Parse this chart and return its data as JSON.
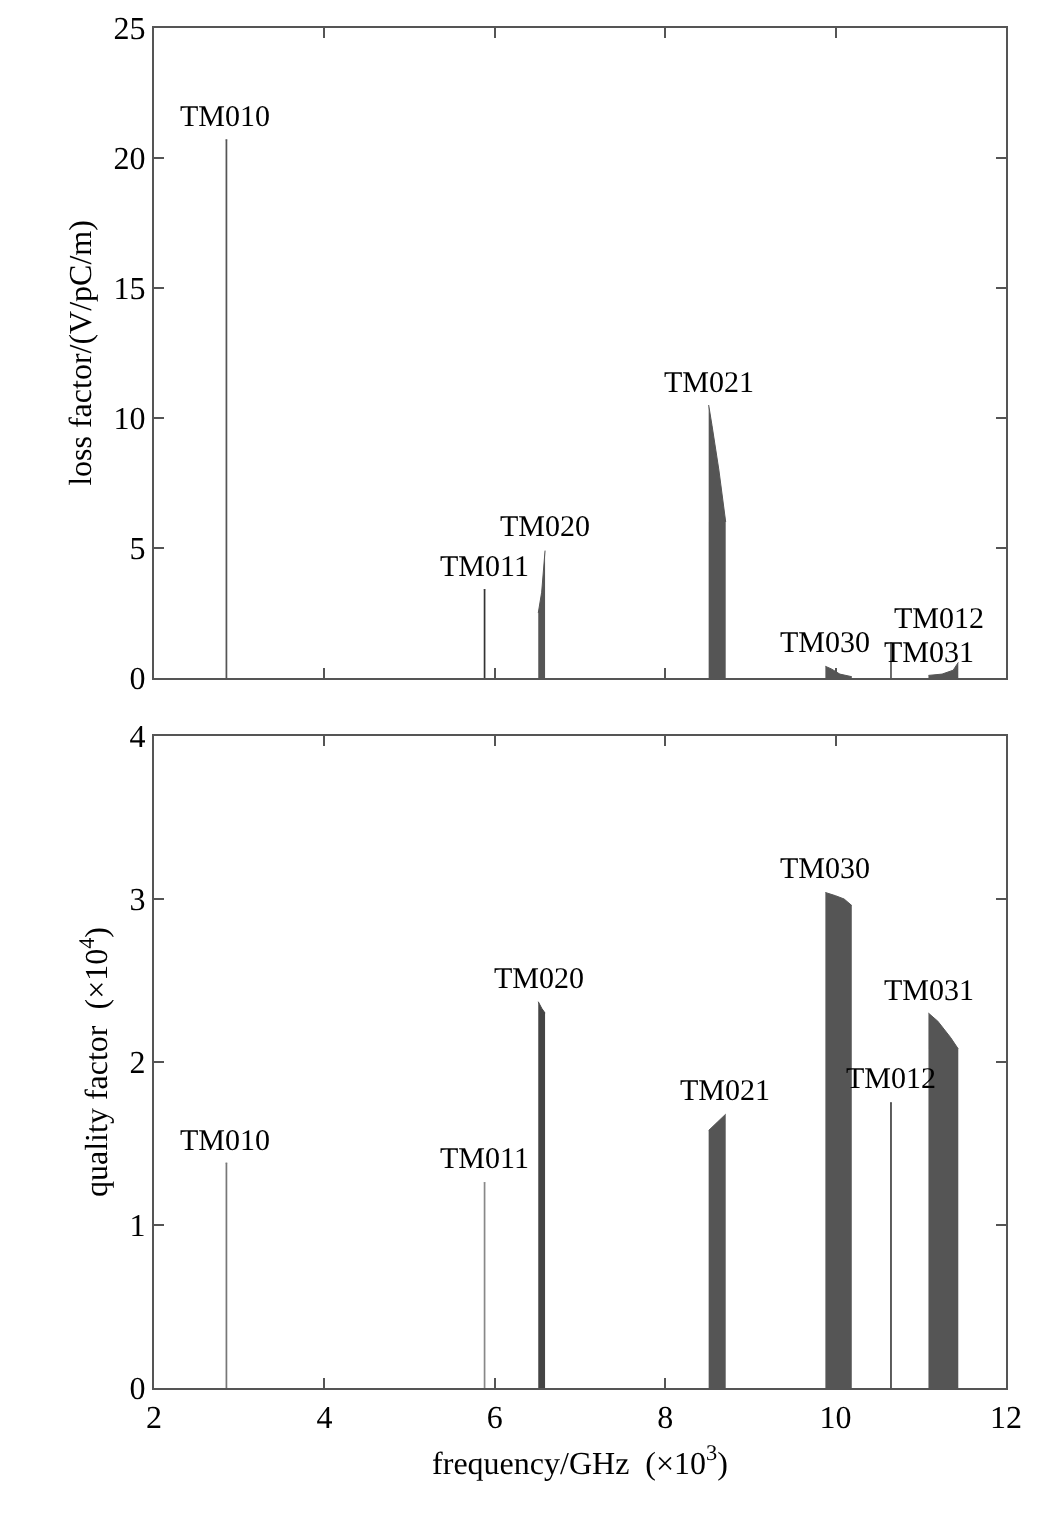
{
  "chart_data": [
    {
      "type": "area",
      "ylabel": "loss factor/(V/pC/m)",
      "xlim": [
        2,
        12
      ],
      "ylim": [
        0,
        25
      ],
      "xticks": [
        2,
        4,
        6,
        8,
        10,
        12
      ],
      "yticks": [
        0,
        5,
        10,
        15,
        20,
        25
      ],
      "tick_labels": "y",
      "series": [
        {
          "color": "#555555",
          "x": [
            2.84,
            2.86
          ],
          "values": [
            20.7,
            20.7
          ]
        },
        {
          "color": "#333333",
          "x": [
            5.87,
            5.89
          ],
          "values": [
            3.4,
            3.4
          ]
        },
        {
          "color": "#555555",
          "x": [
            6.51,
            6.55,
            6.59
          ],
          "values": [
            2.5,
            3.3,
            4.9
          ]
        },
        {
          "color": "#555555",
          "x": [
            8.51,
            8.55,
            8.63,
            8.71
          ],
          "values": [
            10.5,
            9.7,
            8.0,
            6.0
          ]
        },
        {
          "color": "#555555",
          "x": [
            9.88,
            9.95,
            10.05,
            10.19
          ],
          "values": [
            0.45,
            0.35,
            0.15,
            0.05
          ]
        },
        {
          "color": "#555555",
          "x": [
            10.64,
            10.66
          ],
          "values": [
            1.35,
            1.35
          ]
        },
        {
          "color": "#555555",
          "x": [
            11.09,
            11.25,
            11.38,
            11.44
          ],
          "values": [
            0.1,
            0.15,
            0.3,
            0.6
          ]
        }
      ],
      "annotations": [
        {
          "text": "TM010",
          "x": 2.84,
          "y": 20.7
        },
        {
          "text": "TM011",
          "x": 5.87,
          "y": 3.4
        },
        {
          "text": "TM020",
          "x": 6.59,
          "y": 4.9
        },
        {
          "text": "TM021",
          "x": 8.51,
          "y": 10.5
        },
        {
          "text": "TM030",
          "x": 9.88,
          "y": 0.45
        },
        {
          "text": "TM012",
          "x": 10.64,
          "y": 1.35
        },
        {
          "text": "TM031",
          "x": 11.09,
          "y": 0.1
        }
      ]
    },
    {
      "type": "area",
      "xlabel": "frequency/GHz  (×10$^{3}$)",
      "ylabel": "quality factor  (×10$^{4}$)",
      "xlim": [
        2,
        12
      ],
      "ylim": [
        0,
        4
      ],
      "xticks": [
        2,
        4,
        6,
        8,
        10,
        12
      ],
      "yticks": [
        0,
        1,
        2,
        3,
        4
      ],
      "series": [
        {
          "color": "#777777",
          "x": [
            2.84,
            2.86
          ],
          "values": [
            1.38,
            1.38
          ]
        },
        {
          "color": "#888888",
          "x": [
            5.87,
            5.89
          ],
          "values": [
            1.26,
            1.26
          ]
        },
        {
          "color": "#444444",
          "x": [
            6.51,
            6.55,
            6.59
          ],
          "values": [
            2.37,
            2.33,
            2.3
          ]
        },
        {
          "color": "#555555",
          "x": [
            8.51,
            8.61,
            8.71
          ],
          "values": [
            1.58,
            1.63,
            1.68
          ]
        },
        {
          "color": "#555555",
          "x": [
            9.88,
            10.0,
            10.1,
            10.19
          ],
          "values": [
            3.04,
            3.02,
            3.0,
            2.96
          ]
        },
        {
          "color": "#444444",
          "x": [
            10.64,
            10.66
          ],
          "values": [
            1.75,
            1.75
          ]
        },
        {
          "color": "#555555",
          "x": [
            11.09,
            11.2,
            11.35,
            11.44
          ],
          "values": [
            2.3,
            2.25,
            2.15,
            2.08
          ]
        }
      ],
      "annotations": [
        {
          "text": "TM010",
          "x": 2.84,
          "y": 1.38
        },
        {
          "text": "TM011",
          "x": 5.87,
          "y": 1.26
        },
        {
          "text": "TM020",
          "x": 6.51,
          "y": 2.37
        },
        {
          "text": "TM021",
          "x": 8.71,
          "y": 1.68
        },
        {
          "text": "TM030",
          "x": 9.88,
          "y": 3.04
        },
        {
          "text": "TM012",
          "x": 10.64,
          "y": 1.75
        },
        {
          "text": "TM031",
          "x": 11.09,
          "y": 2.3
        }
      ]
    }
  ]
}
